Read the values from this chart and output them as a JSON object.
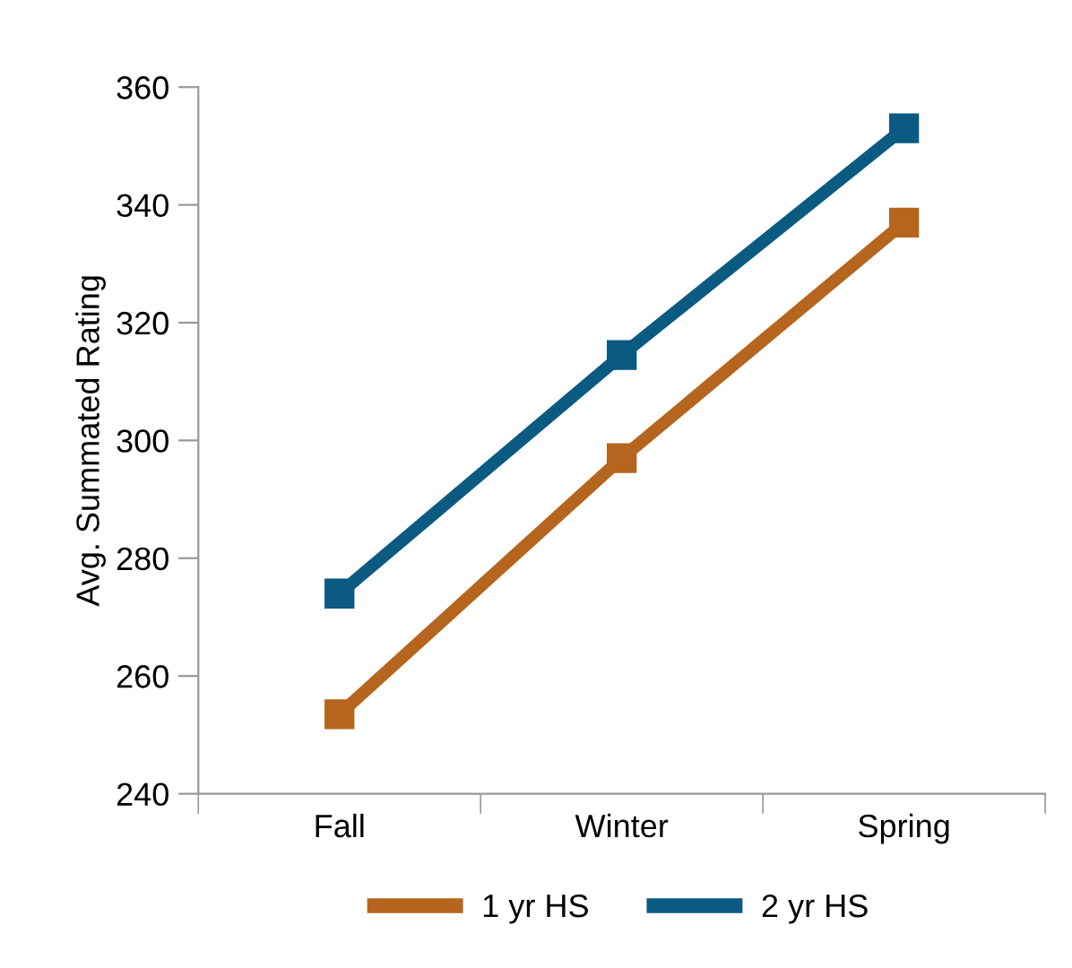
{
  "chart_data": {
    "type": "line",
    "ylabel": "Avg. Summated Rating",
    "categories": [
      "Fall",
      "Winter",
      "Spring"
    ],
    "series": [
      {
        "name": "1 yr HS",
        "color": "#b5651d",
        "values": [
          253.5,
          297,
          337
        ]
      },
      {
        "name": "2 yr HS",
        "color": "#0b5a82",
        "values": [
          274,
          314.5,
          353
        ]
      }
    ],
    "ylim": [
      240,
      360
    ],
    "yticks": [
      240,
      260,
      280,
      300,
      320,
      340,
      360
    ],
    "marker": "square",
    "line_style": "solid",
    "grid": false,
    "legend": "bottom"
  }
}
